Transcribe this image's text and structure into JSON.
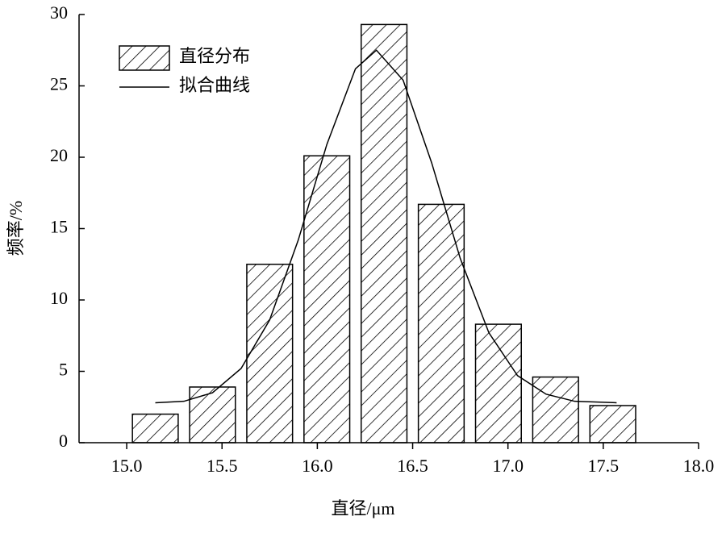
{
  "chart_data": {
    "type": "bar",
    "xlabel": "直径/μm",
    "ylabel": "频率/%",
    "xlim": [
      14.75,
      18.0
    ],
    "ylim": [
      0,
      30
    ],
    "xticks": [
      {
        "value": 15,
        "label": "15.0"
      },
      {
        "value": 15.5,
        "label": "15.5"
      },
      {
        "value": 16,
        "label": "16.0"
      },
      {
        "value": 16.5,
        "label": "16.5"
      },
      {
        "value": 17,
        "label": "17.0"
      },
      {
        "value": 17.5,
        "label": "17.5"
      },
      {
        "value": 18,
        "label": "18.0"
      }
    ],
    "yticks": [
      0,
      5,
      10,
      15,
      20,
      25,
      30
    ],
    "legend": "upper left",
    "series": [
      {
        "name": "直径分布",
        "type": "bar",
        "color": "#000000",
        "x": [
          15.15,
          15.45,
          15.75,
          16.05,
          16.35,
          16.65,
          16.95,
          17.25,
          17.55
        ],
        "values": [
          2.0,
          3.9,
          12.5,
          20.1,
          29.3,
          16.7,
          8.3,
          4.6,
          2.6
        ]
      },
      {
        "name": "拟合曲线",
        "type": "line",
        "color": "#000000",
        "x": [
          15.15,
          15.3,
          15.45,
          15.6,
          15.75,
          15.9,
          16.05,
          16.2,
          16.31,
          16.45,
          16.6,
          16.75,
          16.9,
          17.05,
          17.2,
          17.35,
          17.57
        ],
        "values": [
          2.8,
          2.9,
          3.5,
          5.2,
          8.6,
          14.2,
          20.9,
          26.2,
          27.5,
          25.4,
          19.6,
          12.9,
          7.7,
          4.7,
          3.4,
          2.9,
          2.8
        ]
      }
    ]
  }
}
